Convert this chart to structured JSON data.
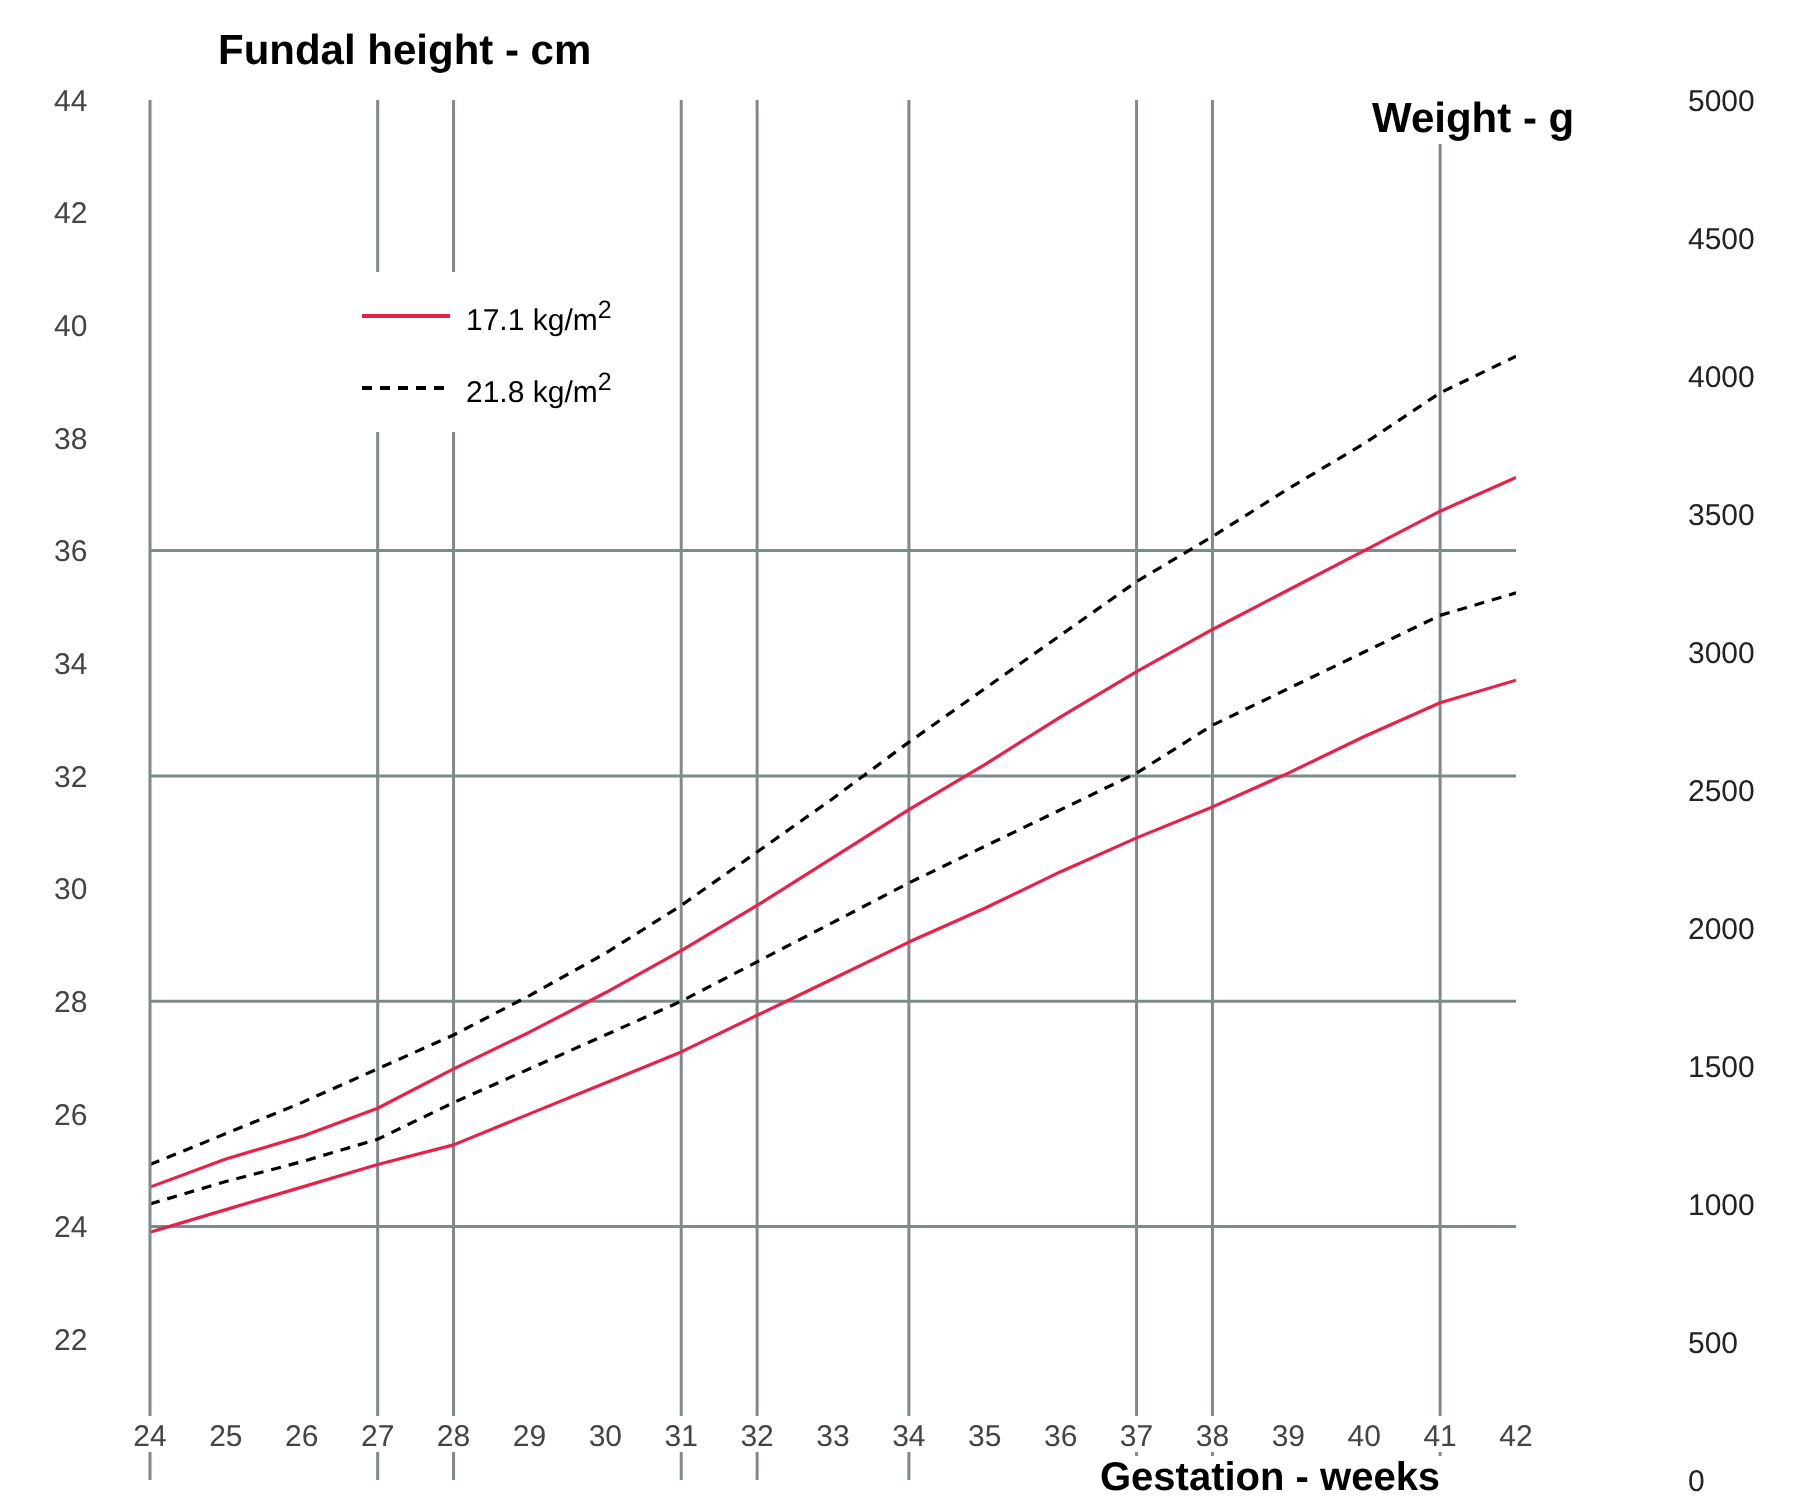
{
  "chart_data": {
    "type": "line",
    "ylabel": "Fundal height - cm",
    "y2label": "Weight - g",
    "xlabel": "Gestation - weeks",
    "x": [
      24,
      25,
      26,
      27,
      28,
      29,
      30,
      31,
      32,
      33,
      34,
      35,
      36,
      37,
      38,
      39,
      40,
      41,
      42
    ],
    "xlim": [
      24,
      42
    ],
    "xticks": [
      24,
      25,
      26,
      27,
      28,
      29,
      30,
      31,
      32,
      33,
      34,
      35,
      36,
      37,
      38,
      39,
      40,
      41,
      42
    ],
    "ylim": [
      19.5,
      44
    ],
    "yticks": [
      22,
      24,
      26,
      28,
      30,
      32,
      34,
      36,
      38,
      40,
      42,
      44
    ],
    "y2lim": [
      0,
      5000
    ],
    "y2ticks": [
      0,
      500,
      1000,
      1500,
      2000,
      2500,
      3000,
      3500,
      4000,
      4500,
      5000
    ],
    "grid": false,
    "legend": "top left",
    "marker": "none",
    "ref_lines": [
      {
        "axis": "x",
        "value": 27,
        "color": "#7f8a8a"
      },
      {
        "axis": "x",
        "value": 28,
        "color": "#7f8a8a"
      },
      {
        "axis": "x",
        "value": 31,
        "color": "#7f8a8a"
      },
      {
        "axis": "x",
        "value": 32,
        "color": "#7f8a8a"
      },
      {
        "axis": "x",
        "value": 34,
        "color": "#7f8a8a"
      },
      {
        "axis": "x",
        "value": 37,
        "color": "#7f8a8a"
      },
      {
        "axis": "x",
        "value": 38,
        "color": "#7f8a8a"
      },
      {
        "axis": "x",
        "value": 41,
        "color": "#7f8a8a"
      },
      {
        "axis": "y",
        "value": 24,
        "color": "#7f8a8a"
      },
      {
        "axis": "y",
        "value": 28,
        "color": "#7f8a8a"
      },
      {
        "axis": "y",
        "value": 32,
        "color": "#7f8a8a"
      },
      {
        "axis": "y",
        "value": 36,
        "color": "#7f8a8a"
      }
    ],
    "series": [
      {
        "name": "17.1 kg/m$^{2}$",
        "color": "#e8204a",
        "line_style": "solid",
        "values": [
          24.7,
          25.2,
          25.6,
          26.1,
          26.8,
          27.45,
          28.15,
          28.9,
          29.7,
          30.55,
          31.4,
          32.2,
          33.05,
          33.85,
          34.6,
          35.3,
          36.0,
          36.7,
          37.3
        ]
      },
      {
        "color": "#e8204a",
        "line_style": "solid",
        "values": [
          23.9,
          24.3,
          24.7,
          25.1,
          25.45,
          26.0,
          26.55,
          27.1,
          27.75,
          28.4,
          29.05,
          29.65,
          30.3,
          30.9,
          31.45,
          32.05,
          32.7,
          33.3,
          33.7
        ]
      },
      {
        "name": "21.8 kg/m$^{2}$",
        "color": "#000000",
        "line_style": "dashed",
        "values": [
          25.1,
          25.65,
          26.2,
          26.8,
          27.4,
          28.1,
          28.85,
          29.7,
          30.65,
          31.6,
          32.6,
          33.55,
          34.5,
          35.45,
          36.25,
          37.1,
          37.9,
          38.8,
          39.45
        ]
      },
      {
        "color": "#000000",
        "line_style": "dashed",
        "values": [
          24.4,
          24.8,
          25.15,
          25.55,
          26.2,
          26.8,
          27.4,
          28.0,
          28.7,
          29.4,
          30.1,
          30.75,
          31.4,
          32.05,
          32.9,
          33.55,
          34.2,
          34.85,
          35.25
        ]
      }
    ]
  }
}
